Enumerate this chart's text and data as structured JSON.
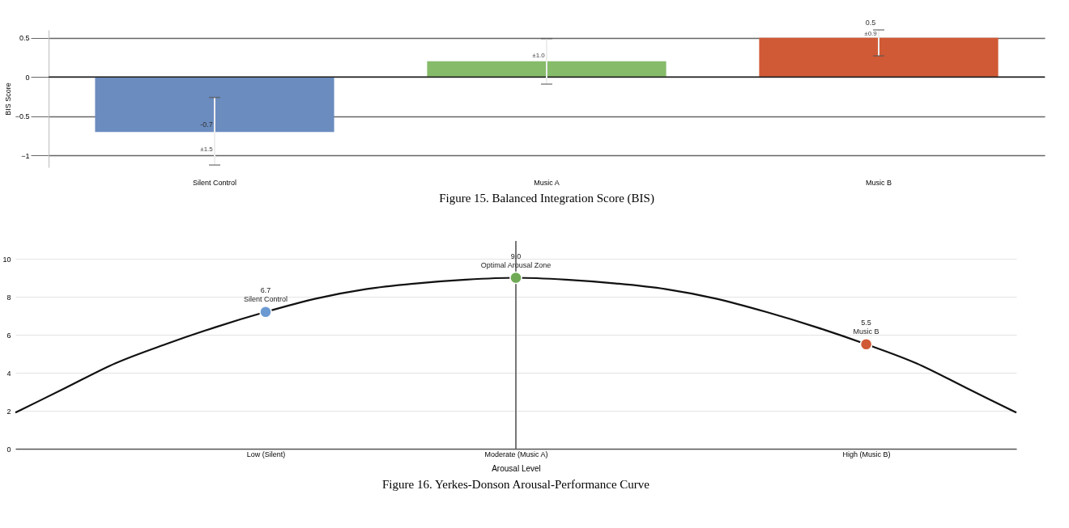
{
  "chart_data": [
    {
      "type": "bar",
      "title": "Figure 15.  Balanced Integration Score (BIS)",
      "ylabel": "BIS Score",
      "categories": [
        "Silent Control",
        "Music A",
        "Music B"
      ],
      "values": [
        -0.7,
        0.2,
        0.5
      ],
      "colors": [
        "#6b8cbf",
        "#86bb6a",
        "#d05a35"
      ],
      "errors": [
        [
          -1.12,
          -0.26
        ],
        [
          -0.09,
          0.49
        ],
        [
          0.27,
          0.6
        ]
      ],
      "value_labels": [
        "-0.7",
        null,
        "0.5"
      ],
      "annotations": [
        {
          "text": "±1.5",
          "x": "Silent Control",
          "y": -0.92
        },
        {
          "text": "±1.0",
          "x": "Music A",
          "y": 0.27
        },
        {
          "text": "±0.9",
          "x": "Music B",
          "y": 0.55
        }
      ],
      "ylim": [
        -1.15,
        0.6
      ],
      "yticks": [
        -1,
        -0.5,
        0,
        0.5
      ],
      "grid": "y"
    },
    {
      "type": "line",
      "title": "Figure 16.  Yerkes-Donson Arousal-Performance Curve",
      "xlabel": "Arousal Level",
      "categories": [
        null,
        null,
        null,
        null,
        null,
        "Low (Silent)",
        null,
        null,
        null,
        null,
        "Moderate (Music A)",
        null,
        null,
        null,
        null,
        null,
        null,
        "High (Music B)",
        null,
        null,
        null
      ],
      "ylim": [
        0,
        10
      ],
      "yticks": [
        0,
        2,
        4,
        6,
        8,
        10
      ],
      "grid": "y",
      "series": [
        {
          "type": "line",
          "color": "#111111",
          "values": [
            1.9,
            3.2,
            4.5,
            5.5,
            6.4,
            7.2,
            7.9,
            8.4,
            8.7,
            8.9,
            9.0,
            8.9,
            8.7,
            8.4,
            7.9,
            7.2,
            6.4,
            5.5,
            4.5,
            3.2,
            1.9
          ]
        },
        {
          "type": "scatter",
          "marker": "circle",
          "x": [
            "Low (Silent)",
            "Moderate (Music A)",
            "High (Music B)"
          ],
          "values": [
            7.2,
            9.0,
            5.5
          ],
          "colors": [
            "#6b9ad2",
            "#6fa956",
            "#d05a35"
          ]
        }
      ],
      "ref_lines": [
        {
          "axis": "x",
          "value": "Moderate (Music A)",
          "color": "#777777"
        }
      ],
      "annotations": [
        {
          "text": "6.7",
          "x": "Low (Silent)",
          "y": 7.2
        },
        {
          "text": "Silent Control",
          "x": "Low (Silent)",
          "y": 7.2
        },
        {
          "text": "9.0",
          "x": "Moderate (Music A)",
          "y": 9.0
        },
        {
          "text": "Optimal Arousal Zone",
          "x": "Moderate (Music A)",
          "y": 9.0
        },
        {
          "text": "5.5",
          "x": "High (Music B)",
          "y": 5.5
        },
        {
          "text": "Music B",
          "x": "High (Music B)",
          "y": 5.5
        }
      ]
    }
  ]
}
